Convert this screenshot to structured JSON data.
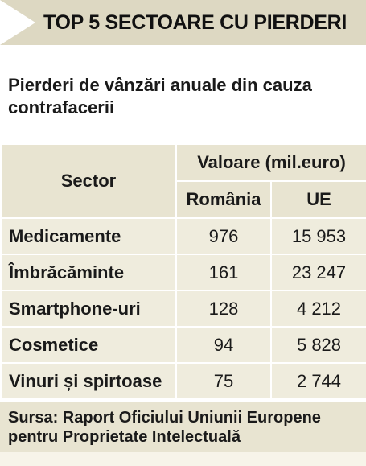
{
  "header": {
    "title": "TOP 5 SECTOARE CU PIERDERI"
  },
  "subtitle": "Pierderi de vânzări anuale din cauza contrafacerii",
  "table": {
    "col_sector": "Sector",
    "col_value": "Valoare (mil.euro)",
    "col_romania": "România",
    "col_eu": "UE",
    "rows": [
      {
        "sector": "Medicamente",
        "romania": "976",
        "eu": "15 953"
      },
      {
        "sector": "Îmbrăcăminte",
        "romania": "161",
        "eu": "23 247"
      },
      {
        "sector": "Smartphone-uri",
        "romania": "128",
        "eu": "4 212"
      },
      {
        "sector": "Cosmetice",
        "romania": "94",
        "eu": "5 828"
      },
      {
        "sector": "Vinuri și spirtoase",
        "romania": "75",
        "eu": "2 744"
      }
    ]
  },
  "source": "Sursa: Raport Oficiului Uniunii Europene pentru Proprietate Intelectuală",
  "colors": {
    "header_bg": "#ddd8c2",
    "table_header_bg": "#e8e4d1",
    "row_bg": "#efecdd"
  }
}
